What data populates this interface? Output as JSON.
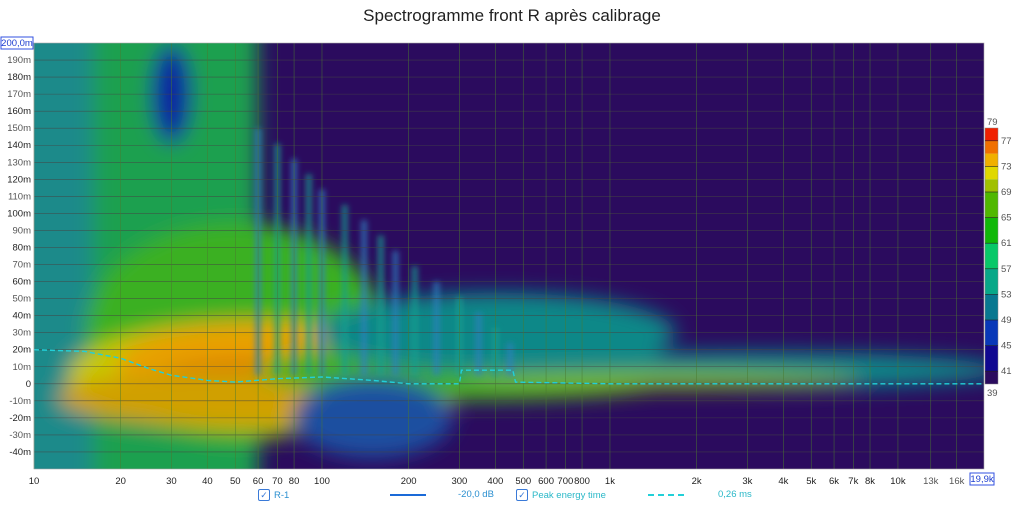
{
  "chart_data": {
    "type": "heatmap",
    "title": "Spectrogramme front R après calibrage",
    "x_scale": "log",
    "xlim": [
      10,
      19900
    ],
    "x_ticks": [
      [
        10,
        "10"
      ],
      [
        20,
        "20"
      ],
      [
        30,
        "30"
      ],
      [
        40,
        "40"
      ],
      [
        50,
        "50"
      ],
      [
        60,
        "60"
      ],
      [
        70,
        "70"
      ],
      [
        80,
        "80"
      ],
      [
        100,
        "100"
      ],
      [
        200,
        "200"
      ],
      [
        300,
        "300"
      ],
      [
        400,
        "400"
      ],
      [
        500,
        "500"
      ],
      [
        600,
        "600"
      ],
      [
        700,
        "700"
      ],
      [
        800,
        "800"
      ],
      [
        1000,
        "1k"
      ],
      [
        2000,
        "2k"
      ],
      [
        3000,
        "3k"
      ],
      [
        4000,
        "4k"
      ],
      [
        5000,
        "5k"
      ],
      [
        6000,
        "6k"
      ],
      [
        7000,
        "7k"
      ],
      [
        8000,
        "8k"
      ],
      [
        10000,
        "10k"
      ],
      [
        13000,
        "13k"
      ],
      [
        16000,
        "16k"
      ]
    ],
    "x_max_label": "19,9k",
    "ylim": [
      -50,
      200
    ],
    "y_ticks": [
      [
        190,
        "190m"
      ],
      [
        180,
        "180m"
      ],
      [
        170,
        "170m"
      ],
      [
        160,
        "160m"
      ],
      [
        150,
        "150m"
      ],
      [
        140,
        "140m"
      ],
      [
        130,
        "130m"
      ],
      [
        120,
        "120m"
      ],
      [
        110,
        "110m"
      ],
      [
        100,
        "100m"
      ],
      [
        90,
        "90m"
      ],
      [
        80,
        "80m"
      ],
      [
        70,
        "70m"
      ],
      [
        60,
        "60m"
      ],
      [
        50,
        "50m"
      ],
      [
        40,
        "40m"
      ],
      [
        30,
        "30m"
      ],
      [
        20,
        "20m"
      ],
      [
        10,
        "10m"
      ],
      [
        0,
        "0"
      ],
      [
        -10,
        "-10m"
      ],
      [
        -20,
        "-20m"
      ],
      [
        -30,
        "-30m"
      ],
      [
        -40,
        "-40m"
      ]
    ],
    "y_max_label": "200,0m",
    "colorbar": {
      "min": 39,
      "max": 79,
      "ticks": [
        41,
        45,
        49,
        53,
        57,
        61,
        65,
        69,
        73,
        77
      ],
      "min_label": "39",
      "max_label": "79"
    },
    "peak_energy_time": [
      [
        10,
        20
      ],
      [
        15,
        19
      ],
      [
        20,
        15
      ],
      [
        25,
        9
      ],
      [
        30,
        5
      ],
      [
        40,
        2
      ],
      [
        50,
        1
      ],
      [
        70,
        3
      ],
      [
        100,
        4
      ],
      [
        150,
        2
      ],
      [
        200,
        0
      ],
      [
        300,
        0
      ],
      [
        305,
        8
      ],
      [
        460,
        8
      ],
      [
        470,
        1
      ],
      [
        1000,
        0
      ],
      [
        19900,
        0
      ]
    ],
    "colors": {
      "background": "#2b0b5e",
      "peak_line": "#22d0d8",
      "grid": "#444444"
    }
  },
  "legend": {
    "r1_label": "R-1",
    "r1_value": "-20,0 dB",
    "peak_label": "Peak energy time",
    "peak_value": "0,26 ms"
  }
}
